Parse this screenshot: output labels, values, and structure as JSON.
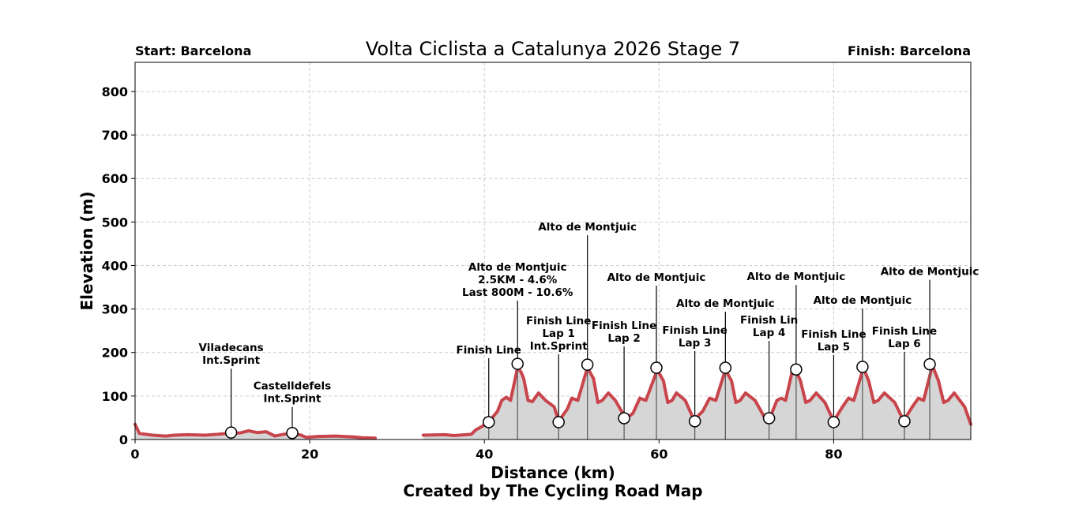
{
  "chart_data": {
    "type": "area",
    "title": "Volta Ciclista a Catalunya 2026 Stage 7",
    "start_label": "Start: Barcelona",
    "finish_label": "Finish: Barcelona",
    "xlabel": "Distance (km)",
    "ylabel": "Elevation (m)",
    "credit": "Created by The Cycling Road Map",
    "xlim": [
      0,
      95.7
    ],
    "ylim": [
      0,
      867
    ],
    "xticks": [
      0,
      20,
      40,
      60,
      80
    ],
    "yticks": [
      0,
      100,
      200,
      300,
      400,
      500,
      600,
      700,
      800
    ],
    "grid": true,
    "line_color": "#c9454c",
    "fill_color": "#d6d6d6",
    "segments": [
      [
        [
          0,
          35
        ],
        [
          0.5,
          14
        ],
        [
          2,
          10
        ],
        [
          3.5,
          8
        ],
        [
          4.5,
          10
        ],
        [
          6,
          11
        ],
        [
          8,
          10
        ],
        [
          9.5,
          12
        ],
        [
          11,
          15
        ],
        [
          12,
          15
        ],
        [
          13,
          20
        ],
        [
          14,
          16
        ],
        [
          15,
          18
        ],
        [
          16,
          8
        ],
        [
          17,
          12
        ],
        [
          18,
          14
        ],
        [
          19,
          10
        ],
        [
          19.6,
          5
        ],
        [
          21,
          7
        ],
        [
          23,
          8
        ],
        [
          25,
          6
        ],
        [
          26,
          4
        ],
        [
          27.5,
          3
        ]
      ],
      [
        [
          33,
          10
        ],
        [
          35.5,
          11
        ],
        [
          36.5,
          9
        ],
        [
          38.5,
          12
        ],
        [
          39,
          22
        ],
        [
          40,
          33
        ],
        [
          40.5,
          40
        ],
        [
          41.5,
          65
        ],
        [
          42,
          90
        ],
        [
          42.5,
          97
        ],
        [
          43,
          90
        ],
        [
          43.8,
          165
        ],
        [
          44.2,
          155
        ],
        [
          44.5,
          140
        ],
        [
          45,
          90
        ],
        [
          45.5,
          87
        ],
        [
          46.2,
          107
        ],
        [
          47,
          90
        ],
        [
          48,
          75
        ],
        [
          48.5,
          42
        ],
        [
          49.5,
          70
        ],
        [
          50,
          95
        ],
        [
          50.7,
          90
        ],
        [
          51.8,
          165
        ],
        [
          52.5,
          140
        ],
        [
          53,
          85
        ],
        [
          53.5,
          90
        ],
        [
          54.2,
          107
        ],
        [
          55,
          90
        ],
        [
          56,
          55
        ],
        [
          56.2,
          48
        ],
        [
          57,
          60
        ],
        [
          57.8,
          95
        ],
        [
          58.5,
          90
        ],
        [
          59.8,
          160
        ],
        [
          60.5,
          135
        ],
        [
          61,
          85
        ],
        [
          61.5,
          90
        ],
        [
          62,
          107
        ],
        [
          63,
          90
        ],
        [
          64,
          45
        ],
        [
          65,
          65
        ],
        [
          65.8,
          95
        ],
        [
          66.5,
          90
        ],
        [
          67.6,
          160
        ],
        [
          68.3,
          135
        ],
        [
          68.8,
          85
        ],
        [
          69.3,
          90
        ],
        [
          69.9,
          107
        ],
        [
          71,
          90
        ],
        [
          72.1,
          50
        ],
        [
          72.6,
          45
        ],
        [
          73.5,
          90
        ],
        [
          74,
          95
        ],
        [
          74.5,
          90
        ],
        [
          75.4,
          170
        ],
        [
          76.2,
          135
        ],
        [
          76.8,
          85
        ],
        [
          77.3,
          90
        ],
        [
          78,
          107
        ],
        [
          79,
          85
        ],
        [
          80,
          42
        ],
        [
          81,
          75
        ],
        [
          81.7,
          95
        ],
        [
          82.3,
          90
        ],
        [
          83.4,
          165
        ],
        [
          84,
          135
        ],
        [
          84.6,
          85
        ],
        [
          85.1,
          90
        ],
        [
          85.8,
          107
        ],
        [
          87,
          85
        ],
        [
          88,
          43
        ],
        [
          89,
          75
        ],
        [
          89.7,
          95
        ],
        [
          90.3,
          90
        ],
        [
          91.3,
          170
        ],
        [
          92,
          135
        ],
        [
          92.6,
          85
        ],
        [
          93.1,
          90
        ],
        [
          93.8,
          107
        ],
        [
          95,
          75
        ],
        [
          95.7,
          35
        ]
      ]
    ],
    "annotations": [
      {
        "km": 11.0,
        "elev": 16,
        "lines": [
          "Viladecans",
          "Int.Sprint"
        ]
      },
      {
        "km": 18.0,
        "elev": 15,
        "lines": [
          "Castelldefels",
          "Int.Sprint"
        ]
      },
      {
        "km": 40.5,
        "elev": 40,
        "lines": [
          "Finish Line"
        ]
      },
      {
        "km": 43.8,
        "elev": 174,
        "lines": [
          "Alto de Montjuic",
          "2.5KM - 4.6%",
          "Last 800M - 10.6%"
        ]
      },
      {
        "km": 48.5,
        "elev": 40,
        "lines": [
          "Finish Line",
          "Lap 1",
          "Int.Sprint"
        ]
      },
      {
        "km": 51.8,
        "elev": 172,
        "lines": [
          "Alto de Montjuic"
        ]
      },
      {
        "km": 56.0,
        "elev": 49,
        "lines": [
          "Finish Line",
          "Lap 2"
        ]
      },
      {
        "km": 59.7,
        "elev": 165,
        "lines": [
          "Alto de Montjuic"
        ]
      },
      {
        "km": 64.1,
        "elev": 42,
        "lines": [
          "Finish Line",
          "Lap 3"
        ]
      },
      {
        "km": 67.6,
        "elev": 165,
        "lines": [
          "Alto de Montjuic"
        ]
      },
      {
        "km": 72.6,
        "elev": 49,
        "lines": [
          "Finish Lin",
          "Lap 4"
        ]
      },
      {
        "km": 75.7,
        "elev": 161,
        "lines": [
          "Alto de Montjuic"
        ]
      },
      {
        "km": 80.0,
        "elev": 40,
        "lines": [
          "Finish Line",
          "Lap 5"
        ]
      },
      {
        "km": 83.3,
        "elev": 167,
        "lines": [
          "Alto de Montjuic"
        ]
      },
      {
        "km": 88.1,
        "elev": 42,
        "lines": [
          "Finish Line",
          "Lap 6"
        ]
      },
      {
        "km": 91.0,
        "elev": 173,
        "lines": [
          "Alto de Montjuic"
        ]
      }
    ]
  }
}
